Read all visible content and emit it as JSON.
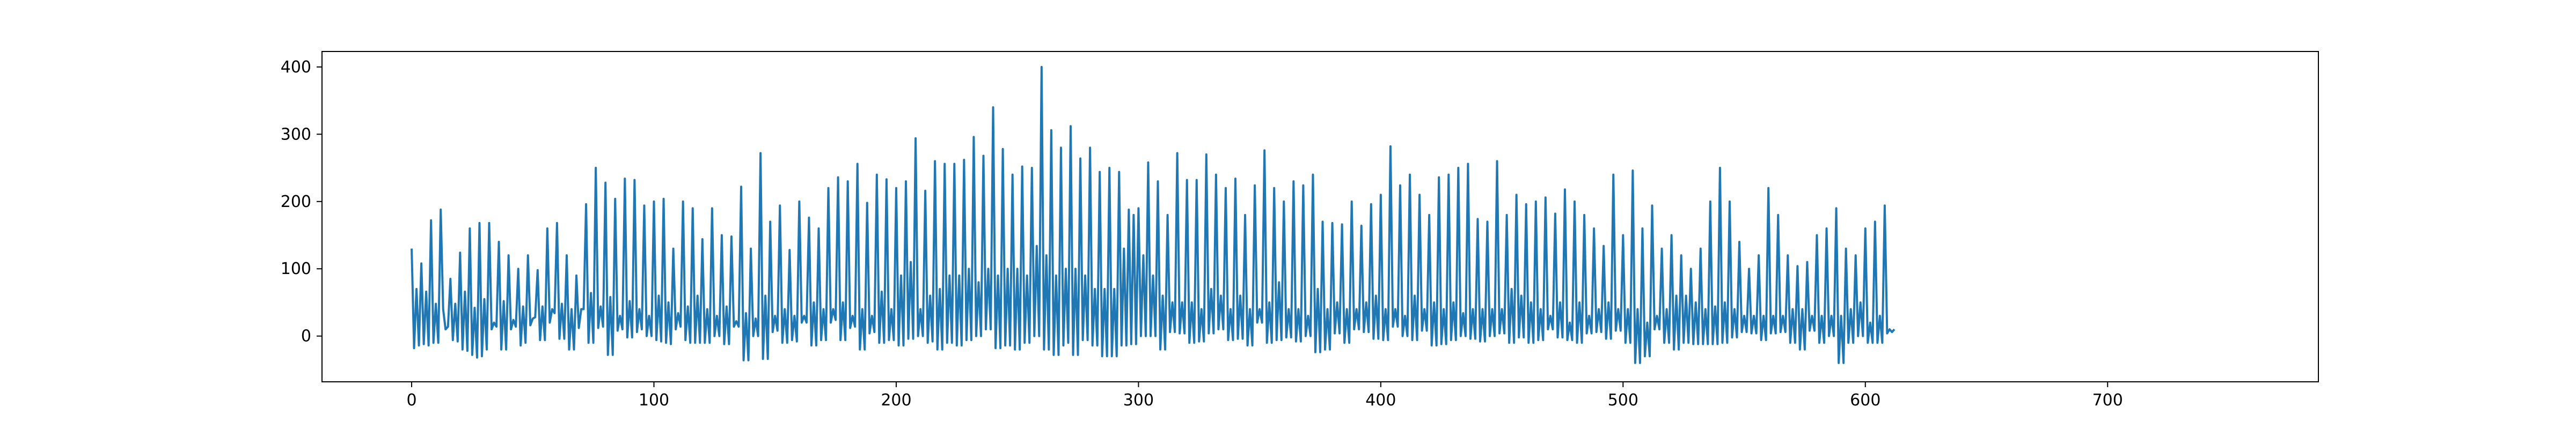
{
  "chart_data": {
    "type": "line",
    "title": "",
    "xlabel": "",
    "ylabel": "",
    "xlim": [
      -37,
      787
    ],
    "ylim": [
      -68,
      423
    ],
    "x_ticks": [
      0,
      100,
      200,
      300,
      400,
      500,
      600,
      700
    ],
    "y_ticks": [
      0,
      100,
      200,
      300,
      400
    ],
    "x_tick_labels": [
      "0",
      "100",
      "200",
      "300",
      "400",
      "500",
      "600",
      "700"
    ],
    "y_tick_labels": [
      "0",
      "100",
      "200",
      "300",
      "400"
    ],
    "grid": false,
    "legend": "none",
    "series": [
      {
        "color": "#1f77b4",
        "x_start": 0,
        "x_step": 1,
        "values": [
          130,
          -18,
          70,
          -14,
          108,
          -12,
          66,
          -14,
          172,
          -10,
          48,
          -10,
          188,
          40,
          10,
          14,
          85,
          -6,
          48,
          -8,
          124,
          -20,
          66,
          -22,
          160,
          -28,
          42,
          -32,
          168,
          -30,
          55,
          -20,
          168,
          10,
          20,
          14,
          140,
          -20,
          52,
          -20,
          120,
          10,
          24,
          14,
          100,
          -14,
          44,
          -10,
          120,
          16,
          26,
          28,
          98,
          -6,
          44,
          -6,
          160,
          20,
          40,
          34,
          168,
          -4,
          48,
          -4,
          120,
          -20,
          40,
          -20,
          90,
          12,
          40,
          40,
          196,
          -10,
          64,
          -10,
          250,
          12,
          44,
          14,
          228,
          -28,
          58,
          -28,
          204,
          8,
          30,
          10,
          234,
          -2,
          52,
          -2,
          232,
          6,
          40,
          10,
          194,
          0,
          30,
          0,
          200,
          -6,
          60,
          -8,
          204,
          -10,
          50,
          -12,
          130,
          10,
          34,
          14,
          200,
          -6,
          44,
          -10,
          190,
          -10,
          60,
          -10,
          144,
          -10,
          40,
          -10,
          190,
          0,
          30,
          0,
          150,
          -12,
          44,
          -12,
          148,
          14,
          22,
          14,
          222,
          -36,
          34,
          -36,
          130,
          0,
          26,
          0,
          272,
          -34,
          60,
          -34,
          170,
          6,
          30,
          8,
          194,
          -10,
          40,
          -10,
          128,
          -6,
          30,
          -8,
          200,
          20,
          30,
          20,
          176,
          -14,
          50,
          -14,
          160,
          -6,
          40,
          -6,
          220,
          20,
          40,
          24,
          236,
          -6,
          50,
          -6,
          230,
          12,
          30,
          14,
          256,
          -20,
          40,
          -20,
          198,
          4,
          30,
          6,
          240,
          -10,
          66,
          -10,
          233,
          -6,
          40,
          -6,
          220,
          -14,
          90,
          -14,
          230,
          -4,
          110,
          -4,
          294,
          0,
          40,
          0,
          216,
          -10,
          60,
          -8,
          260,
          -20,
          70,
          -20,
          256,
          -10,
          90,
          -10,
          256,
          -14,
          90,
          -14,
          262,
          -6,
          100,
          -6,
          296,
          0,
          80,
          0,
          268,
          10,
          100,
          10,
          340,
          -18,
          90,
          -18,
          278,
          -14,
          100,
          -14,
          240,
          -20,
          100,
          -20,
          252,
          -10,
          90,
          -10,
          250,
          0,
          134,
          0,
          400,
          -20,
          120,
          -20,
          306,
          -28,
          90,
          -28,
          280,
          -14,
          100,
          -10,
          312,
          -28,
          100,
          -28,
          264,
          -6,
          90,
          -6,
          280,
          -14,
          70,
          -14,
          244,
          -30,
          70,
          -30,
          250,
          -30,
          70,
          -30,
          244,
          -14,
          130,
          -14,
          188,
          -12,
          180,
          -12,
          190,
          0,
          120,
          0,
          258,
          0,
          90,
          0,
          230,
          -20,
          60,
          -20,
          180,
          6,
          50,
          6,
          272,
          4,
          50,
          4,
          232,
          -10,
          50,
          -10,
          232,
          -8,
          40,
          -8,
          270,
          4,
          70,
          4,
          240,
          10,
          60,
          10,
          220,
          -6,
          40,
          -6,
          234,
          -4,
          60,
          -4,
          180,
          -14,
          40,
          -14,
          224,
          20,
          40,
          20,
          276,
          -10,
          50,
          -10,
          220,
          -6,
          80,
          -6,
          200,
          -2,
          40,
          -2,
          230,
          -8,
          40,
          -8,
          224,
          0,
          30,
          0,
          240,
          -24,
          70,
          -24,
          170,
          -20,
          40,
          -20,
          168,
          4,
          50,
          4,
          166,
          -10,
          40,
          -10,
          200,
          10,
          40,
          10,
          164,
          6,
          50,
          6,
          196,
          -4,
          60,
          -4,
          210,
          -6,
          40,
          -6,
          282,
          14,
          40,
          14,
          224,
          0,
          30,
          0,
          240,
          -6,
          60,
          -6,
          210,
          8,
          40,
          8,
          180,
          -14,
          50,
          -14,
          236,
          -12,
          40,
          -12,
          240,
          -6,
          50,
          -6,
          250,
          0,
          34,
          0,
          256,
          -4,
          40,
          -4,
          174,
          -8,
          40,
          -8,
          170,
          0,
          40,
          0,
          260,
          4,
          40,
          4,
          180,
          -10,
          70,
          -10,
          210,
          -2,
          60,
          -2,
          196,
          -10,
          50,
          -10,
          200,
          -6,
          40,
          -6,
          206,
          10,
          30,
          10,
          182,
          -2,
          50,
          -2,
          218,
          -6,
          20,
          -6,
          200,
          -10,
          50,
          -10,
          180,
          4,
          30,
          4,
          160,
          6,
          40,
          6,
          134,
          -4,
          50,
          -4,
          240,
          8,
          40,
          8,
          150,
          -10,
          40,
          -10,
          246,
          -40,
          40,
          -40,
          160,
          -30,
          20,
          -30,
          194,
          10,
          30,
          10,
          130,
          -10,
          40,
          -10,
          150,
          -20,
          60,
          -20,
          120,
          -10,
          60,
          -10,
          100,
          -12,
          50,
          -12,
          130,
          -12,
          40,
          -12,
          200,
          -12,
          44,
          -12,
          250,
          -10,
          50,
          -10,
          200,
          -2,
          40,
          -2,
          140,
          6,
          30,
          6,
          100,
          4,
          30,
          4,
          120,
          -6,
          30,
          -6,
          220,
          4,
          30,
          4,
          180,
          6,
          30,
          6,
          120,
          -10,
          40,
          -10,
          104,
          -20,
          40,
          -20,
          110,
          8,
          30,
          8,
          150,
          -10,
          30,
          -10,
          160,
          0,
          30,
          0,
          190,
          -40,
          30,
          -40,
          130,
          -10,
          40,
          -10,
          120,
          0,
          50,
          0,
          160,
          -10,
          20,
          -10,
          170,
          -10,
          30,
          -10,
          194,
          4,
          10,
          6,
          10
        ]
      }
    ]
  }
}
